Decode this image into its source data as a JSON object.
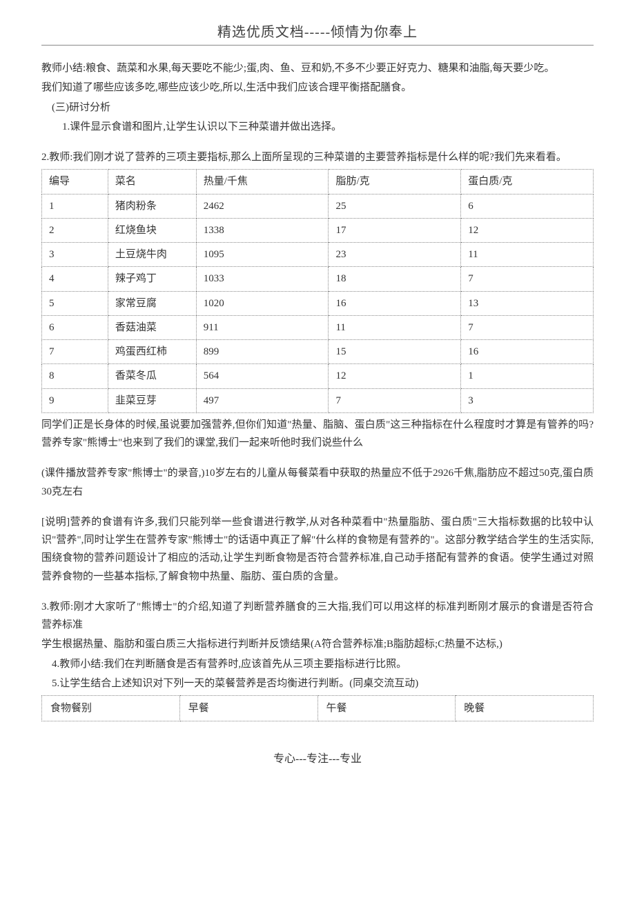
{
  "header": {
    "title": "精选优质文档-----倾情为你奉上"
  },
  "paragraphs": {
    "p1": "教师小结:粮食、蔬菜和水果,每天要吃不能少;蛋,肉、鱼、豆和奶,不多不少要正好克力、糖果和油脂,每天要少吃。",
    "p2": "我们知道了哪些应该多吃,哪些应该少吃,所以,生活中我们应该合理平衡搭配膳食。",
    "p3": "(三)研讨分析",
    "p4": "1.课件显示食谱和图片,让学生认识以下三种菜谱并做出选择。",
    "p5": "2.教师:我们刚才说了营养的三项主要指标,那么上面所呈现的三种菜谱的主要营养指标是什么样的呢?我们先来看看。",
    "p6": "同学们正是长身体的时候,虽说要加强营养,但你们知道\"热量、脂脑、蛋白质\"这三种指标在什么程度时才算是有管养的吗?营养专家\"熊博士\"也来到了我们的课堂,我们一起来听他时我们说些什么",
    "p7": "(课件播放营养专家\"熊博士\"的录音,)10岁左右的儿童从每餐菜看中获取的热量应不低于2926千焦,脂肪应不超过50克,蛋白质30克左右",
    "p8": "[说明]营养的食谱有许多,我们只能列举一些食谱进行教学,从对各种菜看中\"热量脂肪、蛋白质\"三大指标数据的比较中认识\"营养\",同时让学生在营养专家\"熊博士\"的话语中真正了解\"什么样的食物是有营养的\"。这部分教学结合学生的生活实际,围绕食物的营养问题设计了相应的活动,让学生判断食物是否符合营养标准,自己动手搭配有营养的食语。使学生通过对照营养食物的一些基本指标,了解食物中热量、脂肪、蛋白质的含量。",
    "p9": "3.教师:刚才大家听了\"熊博士\"的介绍,知道了判断营养膳食的三大指,我们可以用这样的标准判断刚才展示的食谱是否符合营养标准",
    "p10": "学生根据热量、脂肪和蛋白质三大指标进行判断并反馈结果(A符合营养标准;B脂肪超标;C热量不达标,)",
    "p11": "4.教师小结:我们在判断膳食是否有营养时,应该首先从三项主要指标进行比照。",
    "p12": "5.让学生结合上述知识对下列一天的菜餐营养是否均衡进行判断。(同桌交流互动)"
  },
  "nutrition_table": {
    "columns": [
      "编导",
      "菜名",
      "热量/千焦",
      "脂肪/克",
      "蛋白质/克"
    ],
    "rows": [
      [
        "1",
        "猪肉粉条",
        "2462",
        "25",
        "6"
      ],
      [
        "2",
        "红烧鱼块",
        "1338",
        "17",
        "12"
      ],
      [
        "3",
        "土豆烧牛肉",
        "1095",
        "23",
        "11"
      ],
      [
        "4",
        "辣子鸡丁",
        "1033",
        "18",
        "7"
      ],
      [
        "5",
        "家常豆腐",
        "1020",
        "16",
        "13"
      ],
      [
        "6",
        "香菇油菜",
        "911",
        "11",
        "7"
      ],
      [
        "7",
        "鸡蛋西红柿",
        "899",
        "15",
        "16"
      ],
      [
        "8",
        "香菜冬瓜",
        "564",
        "12",
        "1"
      ],
      [
        "9",
        "韭菜豆芽",
        "497",
        "7",
        "3"
      ]
    ],
    "border_color": "#888888",
    "font_size": 15
  },
  "meal_table": {
    "columns": [
      "食物餐别",
      "早餐",
      "午餐",
      "晚餐"
    ],
    "border_color": "#888888",
    "font_size": 15
  },
  "footer": {
    "text": "专心---专注---专业"
  },
  "style": {
    "background": "#ffffff",
    "text_color": "#333333",
    "header_color": "#404040",
    "body_font_size": 15,
    "header_font_size": 20,
    "footer_font_size": 16
  }
}
